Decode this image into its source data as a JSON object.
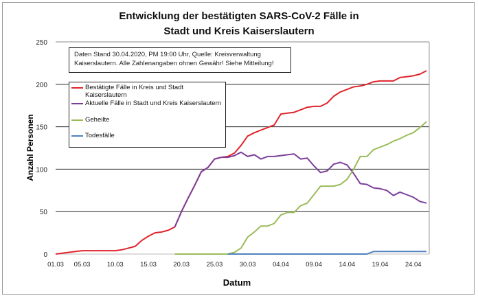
{
  "chart_data": {
    "type": "line",
    "title": "Entwicklung der bestätigten SARS-CoV-2 Fälle in Stadt und Kreis Kaiserslautern",
    "title_lines": [
      "Entwicklung der bestätigten SARS-CoV-2 Fälle in",
      "Stadt und Kreis Kaiserslautern"
    ],
    "note_lines": [
      "Daten Stand 30.04.2020, PM 19:00 Uhr, Quelle: Kreisverwaltung",
      "Kaiserslautern. Alle Zahlenangaben ohnen Gewähr! Siehe Mitteilung!"
    ],
    "xlabel": "Datum",
    "ylabel": "Anzahl Personen",
    "ylim": [
      0,
      250
    ],
    "yticks": [
      0,
      50,
      100,
      150,
      200,
      250
    ],
    "grid": "horizontal",
    "legend_position": "top-left",
    "x": [
      "01.03",
      "02.03",
      "03.03",
      "04.03",
      "05.03",
      "06.03",
      "07.03",
      "08.03",
      "09.03",
      "10.03",
      "11.03",
      "12.03",
      "13.03",
      "14.03",
      "15.03",
      "16.03",
      "17.03",
      "18.03",
      "19.03",
      "20.03",
      "21.03",
      "22.03",
      "23.03",
      "24.03",
      "25.03",
      "26.03",
      "27.03",
      "28.03",
      "29.03",
      "30.03",
      "31.03",
      "01.04",
      "02.04",
      "03.04",
      "04.04",
      "05.04",
      "06.04",
      "07.04",
      "08.04",
      "09.04",
      "10.04",
      "11.04",
      "12.04",
      "13.04",
      "14.04",
      "15.04",
      "16.04",
      "17.04",
      "18.04",
      "19.04",
      "20.04",
      "21.04",
      "22.04",
      "23.04",
      "24.04",
      "25.04",
      "26.04"
    ],
    "xtick_labels": [
      "01.03",
      "05.03",
      "10.03",
      "15.03",
      "20.03",
      "25.03",
      "30.03",
      "04.04",
      "09.04",
      "14.04",
      "19.04",
      "24.04"
    ],
    "series": [
      {
        "name": "Bestätigte Fälle in Kreis und Stadt Kaiserslautern",
        "color": "#e0232b",
        "values": [
          0,
          1,
          2,
          3,
          4,
          4,
          4,
          4,
          4,
          4,
          5,
          7,
          9,
          16,
          21,
          25,
          26,
          28,
          32,
          50,
          66,
          81,
          97,
          102,
          112,
          114,
          115,
          119,
          128,
          139,
          143,
          146,
          149,
          152,
          165,
          166,
          167,
          170,
          173,
          174,
          174,
          178,
          186,
          191,
          194,
          197,
          198,
          200,
          203,
          204,
          204,
          204,
          208,
          209,
          210,
          212,
          216
        ]
      },
      {
        "name": "Aktuelle Fälle in Stadt und Kreis Kaiserslautern",
        "color": "#7b3f9b",
        "values": [
          null,
          null,
          null,
          null,
          null,
          null,
          null,
          null,
          null,
          null,
          null,
          null,
          null,
          null,
          null,
          null,
          null,
          null,
          32,
          50,
          66,
          81,
          97,
          102,
          112,
          114,
          114,
          116,
          120,
          115,
          117,
          112,
          115,
          115,
          116,
          117,
          118,
          112,
          113,
          104,
          96,
          98,
          106,
          108,
          105,
          95,
          83,
          82,
          78,
          77,
          75,
          69,
          73,
          70,
          67,
          62,
          60
        ]
      },
      {
        "name": "Geheilte",
        "color": "#9bbb59",
        "values": [
          null,
          null,
          null,
          null,
          null,
          null,
          null,
          null,
          null,
          null,
          null,
          null,
          null,
          null,
          null,
          null,
          null,
          null,
          0,
          0,
          0,
          0,
          0,
          0,
          0,
          0,
          0,
          2,
          7,
          20,
          26,
          33,
          33,
          36,
          46,
          49,
          49,
          57,
          60,
          70,
          80,
          80,
          80,
          82,
          88,
          100,
          115,
          115,
          123,
          126,
          129,
          133,
          136,
          140,
          143,
          149,
          156
        ]
      },
      {
        "name": "Todesfälle",
        "color": "#4f81bd",
        "values": [
          null,
          null,
          null,
          null,
          null,
          null,
          null,
          null,
          null,
          null,
          null,
          null,
          null,
          null,
          null,
          null,
          null,
          null,
          null,
          null,
          null,
          null,
          null,
          null,
          null,
          null,
          0,
          0,
          0,
          0,
          0,
          0,
          0,
          0,
          0,
          0,
          0,
          0,
          0,
          0,
          0,
          0,
          0,
          0,
          0,
          0,
          0,
          0,
          3,
          3,
          3,
          3,
          3,
          3,
          3,
          3,
          3
        ]
      }
    ]
  }
}
